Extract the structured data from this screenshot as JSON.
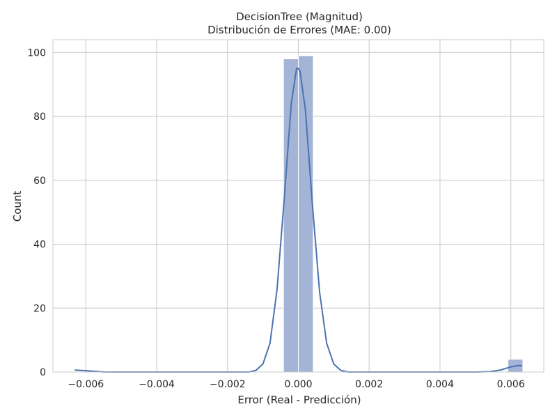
{
  "chart_data": {
    "type": "histogram",
    "title": "DecisionTree (Magnitud)",
    "subtitle": "Distribución de Errores (MAE: 0.00)",
    "xlabel": "Error (Real - Predicción)",
    "ylabel": "Count",
    "xlim": [
      -0.00693,
      0.00693
    ],
    "ylim": [
      0,
      104
    ],
    "grid": true,
    "x_ticks": [
      -0.006,
      -0.004,
      -0.002,
      0.0,
      0.002,
      0.004,
      0.006
    ],
    "x_tick_labels": [
      "−0.006",
      "−0.004",
      "−0.002",
      "0.000",
      "0.002",
      "0.004",
      "0.006"
    ],
    "y_ticks": [
      0,
      20,
      40,
      60,
      80,
      100
    ],
    "y_tick_labels": [
      "0",
      "20",
      "40",
      "60",
      "80",
      "100"
    ],
    "bars": [
      {
        "x0": -0.00042,
        "x1": 0.0,
        "count": 98
      },
      {
        "x0": 0.0,
        "x1": 0.00042,
        "count": 99
      },
      {
        "x0": 0.00592,
        "x1": 0.00634,
        "count": 4
      }
    ],
    "kde": [
      [
        -0.0063,
        0.6
      ],
      [
        -0.006,
        0.4
      ],
      [
        -0.0055,
        0.02
      ],
      [
        -0.005,
        0.0
      ],
      [
        -0.003,
        0.0
      ],
      [
        -0.0014,
        0.0
      ],
      [
        -0.0012,
        0.5
      ],
      [
        -0.001,
        2.5
      ],
      [
        -0.0008,
        9
      ],
      [
        -0.0006,
        26
      ],
      [
        -0.0004,
        54
      ],
      [
        -0.0002,
        84
      ],
      [
        -5e-05,
        95
      ],
      [
        0.0,
        95
      ],
      [
        5e-05,
        94
      ],
      [
        0.0002,
        82
      ],
      [
        0.0004,
        52
      ],
      [
        0.0006,
        25
      ],
      [
        0.0008,
        9
      ],
      [
        0.001,
        2.5
      ],
      [
        0.0012,
        0.5
      ],
      [
        0.0014,
        0.0
      ],
      [
        0.005,
        0.0
      ],
      [
        0.0054,
        0.1
      ],
      [
        0.0057,
        0.6
      ],
      [
        0.006,
        1.6
      ],
      [
        0.0062,
        2.0
      ],
      [
        0.0063,
        2.0
      ]
    ],
    "colors": {
      "bar_fill": "#a3b4d6",
      "bar_edge": "#ffffff",
      "kde_line": "#4c72b0",
      "grid": "#cccccc",
      "background": "#ffffff"
    }
  }
}
